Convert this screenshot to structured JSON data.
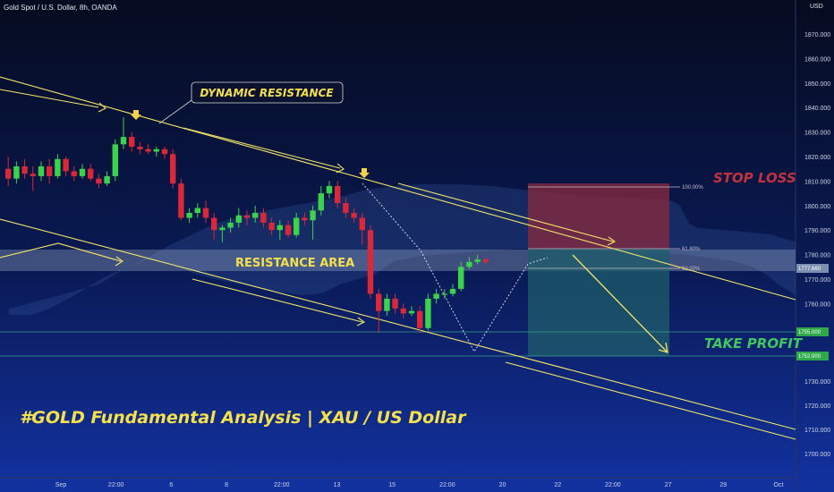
{
  "header": {
    "title": "Gold Spot / U.S. Dollar, 8h, OANDA",
    "currency": "USD"
  },
  "colors": {
    "background_top": "#050b1f",
    "background_bottom": "#0f2a8a",
    "up_candle": "#3bd24c",
    "down_candle": "#d8283a",
    "channel_line": "#f3e46a",
    "stop_zone": "#8a2b3e",
    "profit_zone": "#1f5e6b",
    "resistance_band": "#a9bcd6",
    "cloud": "#3b5ea6"
  },
  "chart_data": {
    "type": "candlestick",
    "title": "Gold Spot / U.S. Dollar, 8h, OANDA",
    "y_axis": {
      "unit": "USD",
      "range": [
        1693,
        1885
      ],
      "ticks": [
        "1870.000",
        "1860.000",
        "1850.000",
        "1840.000",
        "1830.000",
        "1820.000",
        "1810.000",
        "1800.000",
        "1790.000",
        "1780.000",
        "1770.000",
        "1760.000",
        "1730.000",
        "1720.000",
        "1710.000",
        "1700.000"
      ]
    },
    "x_axis": {
      "ticks": [
        "Sep",
        "22:00",
        "6",
        "8",
        "22:00",
        "13",
        "15",
        "22:00",
        "20",
        "22",
        "22:00",
        "27",
        "29",
        "Oct"
      ]
    },
    "candles": [
      {
        "o": 1815,
        "c": 1811,
        "h": 1820,
        "l": 1808
      },
      {
        "o": 1811,
        "c": 1816,
        "h": 1818,
        "l": 1809
      },
      {
        "o": 1816,
        "c": 1813,
        "h": 1819,
        "l": 1811
      },
      {
        "o": 1813,
        "c": 1812,
        "h": 1816,
        "l": 1806
      },
      {
        "o": 1812,
        "c": 1816,
        "h": 1818,
        "l": 1810
      },
      {
        "o": 1816,
        "c": 1812,
        "h": 1819,
        "l": 1809
      },
      {
        "o": 1812,
        "c": 1819,
        "h": 1821,
        "l": 1811
      },
      {
        "o": 1819,
        "c": 1814,
        "h": 1820,
        "l": 1812
      },
      {
        "o": 1814,
        "c": 1812,
        "h": 1816,
        "l": 1810
      },
      {
        "o": 1812,
        "c": 1815,
        "h": 1817,
        "l": 1811
      },
      {
        "o": 1815,
        "c": 1811,
        "h": 1817,
        "l": 1810
      },
      {
        "o": 1811,
        "c": 1809,
        "h": 1813,
        "l": 1807
      },
      {
        "o": 1809,
        "c": 1812,
        "h": 1814,
        "l": 1808
      },
      {
        "o": 1812,
        "c": 1825,
        "h": 1827,
        "l": 1810
      },
      {
        "o": 1825,
        "c": 1828,
        "h": 1836,
        "l": 1823
      },
      {
        "o": 1828,
        "c": 1824,
        "h": 1830,
        "l": 1822
      },
      {
        "o": 1824,
        "c": 1823,
        "h": 1826,
        "l": 1821
      },
      {
        "o": 1823,
        "c": 1822,
        "h": 1825,
        "l": 1821
      },
      {
        "o": 1822,
        "c": 1823,
        "h": 1824,
        "l": 1820
      },
      {
        "o": 1823,
        "c": 1821,
        "h": 1824,
        "l": 1819
      },
      {
        "o": 1821,
        "c": 1809,
        "h": 1823,
        "l": 1807
      },
      {
        "o": 1809,
        "c": 1795,
        "h": 1811,
        "l": 1794
      },
      {
        "o": 1795,
        "c": 1797,
        "h": 1799,
        "l": 1793
      },
      {
        "o": 1797,
        "c": 1799,
        "h": 1801,
        "l": 1795
      },
      {
        "o": 1799,
        "c": 1795,
        "h": 1802,
        "l": 1793
      },
      {
        "o": 1795,
        "c": 1790,
        "h": 1797,
        "l": 1786
      },
      {
        "o": 1790,
        "c": 1791,
        "h": 1792,
        "l": 1785
      },
      {
        "o": 1791,
        "c": 1793,
        "h": 1795,
        "l": 1789
      },
      {
        "o": 1793,
        "c": 1796,
        "h": 1799,
        "l": 1791
      },
      {
        "o": 1796,
        "c": 1795,
        "h": 1798,
        "l": 1792
      },
      {
        "o": 1795,
        "c": 1797,
        "h": 1800,
        "l": 1793
      },
      {
        "o": 1797,
        "c": 1793,
        "h": 1799,
        "l": 1791
      },
      {
        "o": 1793,
        "c": 1790,
        "h": 1795,
        "l": 1788
      },
      {
        "o": 1790,
        "c": 1792,
        "h": 1794,
        "l": 1786
      },
      {
        "o": 1792,
        "c": 1788,
        "h": 1794,
        "l": 1787
      },
      {
        "o": 1788,
        "c": 1795,
        "h": 1797,
        "l": 1787
      },
      {
        "o": 1795,
        "c": 1794,
        "h": 1797,
        "l": 1792
      },
      {
        "o": 1794,
        "c": 1798,
        "h": 1800,
        "l": 1786
      },
      {
        "o": 1798,
        "c": 1805,
        "h": 1808,
        "l": 1796
      },
      {
        "o": 1805,
        "c": 1808,
        "h": 1810,
        "l": 1803
      },
      {
        "o": 1808,
        "c": 1801,
        "h": 1810,
        "l": 1799
      },
      {
        "o": 1801,
        "c": 1797,
        "h": 1803,
        "l": 1795
      },
      {
        "o": 1797,
        "c": 1795,
        "h": 1799,
        "l": 1793
      },
      {
        "o": 1795,
        "c": 1790,
        "h": 1797,
        "l": 1784
      },
      {
        "o": 1790,
        "c": 1764,
        "h": 1792,
        "l": 1762
      },
      {
        "o": 1764,
        "c": 1757,
        "h": 1766,
        "l": 1748
      },
      {
        "o": 1757,
        "c": 1762,
        "h": 1764,
        "l": 1755
      },
      {
        "o": 1762,
        "c": 1758,
        "h": 1764,
        "l": 1756
      },
      {
        "o": 1758,
        "c": 1756,
        "h": 1760,
        "l": 1754
      },
      {
        "o": 1756,
        "c": 1757,
        "h": 1759,
        "l": 1755
      },
      {
        "o": 1757,
        "c": 1750,
        "h": 1759,
        "l": 1748
      },
      {
        "o": 1750,
        "c": 1762,
        "h": 1764,
        "l": 1749
      },
      {
        "o": 1762,
        "c": 1764,
        "h": 1766,
        "l": 1760
      },
      {
        "o": 1764,
        "c": 1764,
        "h": 1766,
        "l": 1762
      },
      {
        "o": 1764,
        "c": 1766,
        "h": 1768,
        "l": 1763
      },
      {
        "o": 1766,
        "c": 1775,
        "h": 1777,
        "l": 1765
      },
      {
        "o": 1775,
        "c": 1777,
        "h": 1779,
        "l": 1774
      },
      {
        "o": 1777,
        "c": 1778,
        "h": 1780,
        "l": 1776
      },
      {
        "o": 1778,
        "c": 1777,
        "h": 1779,
        "l": 1776
      }
    ],
    "fib_levels": [
      {
        "label": "100.00%",
        "price": 1810
      },
      {
        "label": "61.80%",
        "price": 1784
      },
      {
        "label": "50.00%",
        "price": 1777
      }
    ],
    "zones": {
      "stop_loss": {
        "top": 1810,
        "bottom": 1784
      },
      "take_profit": {
        "top": 1784,
        "bottom": 1752
      }
    },
    "horizontal_levels": [
      1755,
      1752
    ],
    "price_tags": [
      "1777.660",
      "1755.000",
      "1752.000"
    ]
  },
  "annotations": {
    "dynamic_resistance": "DYNAMIC RESISTANCE",
    "resistance_area": "RESISTANCE AREA",
    "stop_loss": "STOP LOSS",
    "take_profit": "TAKE PROFIT",
    "main_title": "#GOLD Fundamental Analysis | XAU / US Dollar"
  }
}
